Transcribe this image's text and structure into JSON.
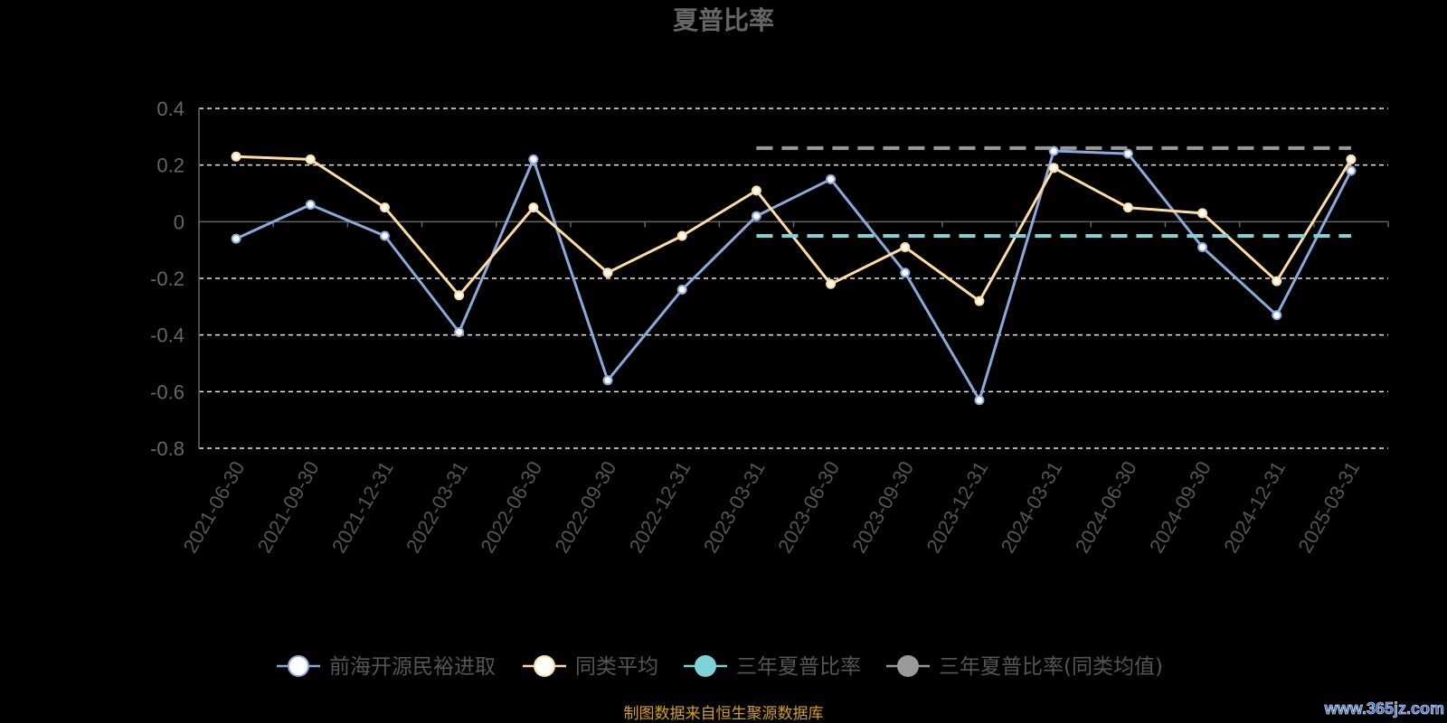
{
  "chart_data": {
    "type": "line",
    "title": "夏普比率",
    "categories": [
      "2021-06-30",
      "2021-09-30",
      "2021-12-31",
      "2022-03-31",
      "2022-06-30",
      "2022-09-30",
      "2022-12-31",
      "2023-03-31",
      "2023-06-30",
      "2023-09-30",
      "2023-12-31",
      "2024-03-31",
      "2024-06-30",
      "2024-09-30",
      "2024-12-31",
      "2025-03-31"
    ],
    "y_ticks": [
      "0.4",
      "0.2",
      "0",
      "-0.2",
      "-0.4",
      "-0.6",
      "-0.8"
    ],
    "ylim": [
      -0.8,
      0.4
    ],
    "grid": true,
    "legend_position": "bottom",
    "series": [
      {
        "name": "前海开源民裕进取",
        "color": "#8aaadc",
        "values": [
          -0.06,
          0.06,
          -0.05,
          -0.39,
          0.22,
          -0.56,
          -0.24,
          0.02,
          0.15,
          -0.18,
          -0.63,
          0.25,
          0.24,
          -0.09,
          -0.33,
          0.18
        ]
      },
      {
        "name": "同类平均",
        "color": "#ffdca0",
        "values": [
          0.23,
          0.22,
          0.05,
          -0.26,
          0.05,
          -0.18,
          -0.05,
          0.11,
          -0.22,
          -0.09,
          -0.28,
          0.19,
          0.05,
          0.03,
          -0.21,
          0.22
        ]
      },
      {
        "name": "三年夏普比率",
        "color": "#7ed3d9",
        "dashed": true,
        "values": [
          null,
          null,
          null,
          null,
          null,
          null,
          null,
          -0.05,
          -0.05,
          -0.05,
          -0.05,
          -0.05,
          -0.05,
          -0.05,
          -0.05,
          -0.05
        ]
      },
      {
        "name": "三年夏普比率(同类均值)",
        "color": "#9a9a9a",
        "dashed": true,
        "values": [
          null,
          null,
          null,
          null,
          null,
          null,
          null,
          0.26,
          0.26,
          0.26,
          0.26,
          0.26,
          0.26,
          0.26,
          0.26,
          0.26
        ]
      }
    ]
  },
  "source_note": "制图数据来自恒生聚源数据库",
  "watermark": "www.365jz.com"
}
